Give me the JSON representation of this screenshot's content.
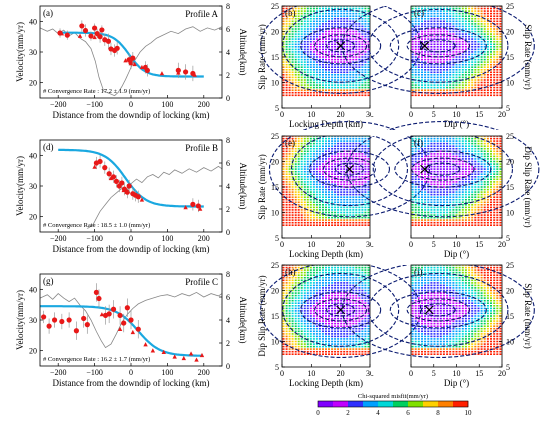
{
  "colorbar": {
    "label": "Chi-squared misfit(mm/yr)",
    "ticks": [
      0,
      2,
      4,
      6,
      8,
      10
    ],
    "colors": [
      "#8000ff",
      "#c000ff",
      "#3030ff",
      "#00a0ff",
      "#00d8d8",
      "#00d060",
      "#80e000",
      "#ffd000",
      "#ff8000",
      "#ff2000"
    ]
  },
  "chart_data": [
    {
      "type": "scatter",
      "panel": "(a)",
      "profile": "Profile A",
      "xlabel": "Distance from the downdip of locking (km)",
      "ylabel": "Velocity(mm/yr)",
      "y2label": "Altitude(km)",
      "xticks": [
        -200,
        -100,
        0,
        100,
        200
      ],
      "yticks": [
        20,
        30,
        40
      ],
      "y2ticks": [
        0,
        2,
        4,
        6,
        8
      ],
      "xlim": [
        -250,
        250
      ],
      "ylim": [
        15,
        45
      ],
      "y2lim": [
        0,
        8
      ],
      "annotation": "# Convergence Rate : 17.2 ± 1.9 (mm/yr)",
      "rate": 17.2,
      "locking_depth": 20,
      "model_curve": {
        "xmin": -200,
        "xmax": 200,
        "low": 22.0,
        "high": 36.3,
        "center": -5,
        "width": 22
      },
      "observations": [
        {
          "x": -195,
          "y": 36.2,
          "e": 1.5
        },
        {
          "x": -175,
          "y": 35.5,
          "e": 1.5
        },
        {
          "x": -135,
          "y": 38.5,
          "e": 1.8
        },
        {
          "x": -125,
          "y": 37.0,
          "e": 2.0
        },
        {
          "x": -110,
          "y": 35.2,
          "e": 1.5
        },
        {
          "x": -100,
          "y": 37.8,
          "e": 1.5
        },
        {
          "x": -93,
          "y": 36.0,
          "e": 1.5
        },
        {
          "x": -85,
          "y": 35.0,
          "e": 2.0
        },
        {
          "x": -80,
          "y": 37.2,
          "e": 1.5
        },
        {
          "x": -72,
          "y": 34.0,
          "e": 2.0
        },
        {
          "x": -62,
          "y": 33.5,
          "e": 2.5
        },
        {
          "x": -55,
          "y": 31.0,
          "e": 2.0
        },
        {
          "x": -45,
          "y": 30.5,
          "e": 2.0
        },
        {
          "x": -38,
          "y": 31.2,
          "e": 2.0
        },
        {
          "x": -5,
          "y": 27.5,
          "e": 2.0
        },
        {
          "x": 0,
          "y": 26.5,
          "e": 2.0
        },
        {
          "x": 5,
          "y": 28.0,
          "e": 2.0
        },
        {
          "x": 40,
          "y": 25.0,
          "e": 2.0
        },
        {
          "x": 45,
          "y": 24.0,
          "e": 2.0
        },
        {
          "x": 130,
          "y": 24.0,
          "e": 2.5
        },
        {
          "x": 150,
          "y": 23.5,
          "e": 2.5
        },
        {
          "x": 170,
          "y": 23.0,
          "e": 2.5
        }
      ],
      "triangles": [
        {
          "x": -190,
          "y": 36.0
        },
        {
          "x": -140,
          "y": 35.2
        },
        {
          "x": -100,
          "y": 34.8
        },
        {
          "x": -15,
          "y": 27.2
        },
        {
          "x": 10,
          "y": 26.0
        },
        {
          "x": 30,
          "y": 25.0
        },
        {
          "x": 85,
          "y": 23.0
        },
        {
          "x": 130,
          "y": 23.2
        },
        {
          "x": 175,
          "y": 22.5
        }
      ]
    },
    {
      "type": "scatter",
      "panel": "(d)",
      "profile": "Profile B",
      "xlabel": "Distance from the downdip of locking (km)",
      "ylabel": "Velocity(mm/yr)",
      "y2label": "Altitude(km)",
      "xticks": [
        -200,
        -100,
        0,
        100,
        200
      ],
      "yticks": [
        20,
        30,
        40
      ],
      "y2ticks": [
        0,
        2,
        4,
        6,
        8
      ],
      "xlim": [
        -250,
        250
      ],
      "ylim": [
        15,
        45
      ],
      "y2lim": [
        0,
        8
      ],
      "annotation": "# Convergence Rate : 18.5 ± 1.0 (mm/yr)",
      "rate": 18.5,
      "locking_depth": 23,
      "model_curve": {
        "xmin": -200,
        "xmax": 200,
        "low": 23.3,
        "high": 41.8,
        "center": -15,
        "width": 28
      },
      "observations": [
        {
          "x": -95,
          "y": 37.5,
          "e": 2.0
        },
        {
          "x": -85,
          "y": 38.0,
          "e": 2.0
        },
        {
          "x": -72,
          "y": 36.0,
          "e": 2.0
        },
        {
          "x": -60,
          "y": 34.0,
          "e": 2.0
        },
        {
          "x": -48,
          "y": 33.0,
          "e": 2.0
        },
        {
          "x": -40,
          "y": 31.5,
          "e": 2.0
        },
        {
          "x": -32,
          "y": 30.0,
          "e": 2.0
        },
        {
          "x": -25,
          "y": 31.0,
          "e": 2.0
        },
        {
          "x": -18,
          "y": 29.0,
          "e": 2.0
        },
        {
          "x": -10,
          "y": 28.0,
          "e": 2.0
        },
        {
          "x": -5,
          "y": 30.0,
          "e": 2.0
        },
        {
          "x": 5,
          "y": 27.5,
          "e": 2.0
        },
        {
          "x": 12,
          "y": 27.0,
          "e": 2.0
        },
        {
          "x": 20,
          "y": 26.5,
          "e": 2.0
        },
        {
          "x": 170,
          "y": 24.0,
          "e": 2.0
        },
        {
          "x": 185,
          "y": 23.5,
          "e": 2.0
        }
      ],
      "triangles": [
        {
          "x": -100,
          "y": 36.2
        },
        {
          "x": -55,
          "y": 32.5
        },
        {
          "x": -20,
          "y": 28.6
        },
        {
          "x": -12,
          "y": 28.0
        },
        {
          "x": 30,
          "y": 25.5
        },
        {
          "x": 150,
          "y": 23.0
        },
        {
          "x": 190,
          "y": 22.5
        }
      ]
    },
    {
      "type": "scatter",
      "panel": "(g)",
      "profile": "Profile C",
      "xlabel": "Distance from the downdip of locking (km)",
      "ylabel": "Velocity(mm/yr)",
      "y2label": "Altitude(km)",
      "xticks": [
        -200,
        -100,
        0,
        100,
        200
      ],
      "yticks": [
        20,
        30,
        40
      ],
      "y2ticks": [
        0,
        2,
        4,
        6,
        8
      ],
      "xlim": [
        -250,
        250
      ],
      "ylim": [
        15,
        45
      ],
      "y2lim": [
        0,
        8
      ],
      "annotation": "# Convergence Rate : 16.2 ± 1.7 (mm/yr)",
      "rate": 16.2,
      "locking_depth": 20,
      "model_curve": {
        "xmin": -250,
        "xmax": 200,
        "low": 18.3,
        "high": 34.5,
        "center": 20,
        "width": 30
      },
      "observations": [
        {
          "x": -240,
          "y": 31.0,
          "e": 2.0
        },
        {
          "x": -225,
          "y": 28.0,
          "e": 2.5
        },
        {
          "x": -210,
          "y": 30.0,
          "e": 2.5
        },
        {
          "x": -190,
          "y": 29.5,
          "e": 2.5
        },
        {
          "x": -170,
          "y": 30.0,
          "e": 2.5
        },
        {
          "x": -150,
          "y": 26.5,
          "e": 3.0
        },
        {
          "x": -130,
          "y": 30.5,
          "e": 3.0
        },
        {
          "x": -120,
          "y": 28.5,
          "e": 3.0
        },
        {
          "x": -95,
          "y": 39.0,
          "e": 3.0
        },
        {
          "x": -88,
          "y": 37.0,
          "e": 3.0
        },
        {
          "x": -70,
          "y": 31.5,
          "e": 3.0
        },
        {
          "x": -60,
          "y": 32.0,
          "e": 3.0
        },
        {
          "x": -48,
          "y": 33.5,
          "e": 3.0
        },
        {
          "x": -30,
          "y": 31.5,
          "e": 3.0
        },
        {
          "x": -20,
          "y": 29.0,
          "e": 3.0
        },
        {
          "x": -10,
          "y": 34.0,
          "e": 3.0
        },
        {
          "x": 0,
          "y": 30.0,
          "e": 3.0
        },
        {
          "x": 20,
          "y": 27.0,
          "e": 3.0
        }
      ],
      "triangles": [
        {
          "x": -80,
          "y": 31.8
        },
        {
          "x": -30,
          "y": 27.0
        },
        {
          "x": 5,
          "y": 26.0
        },
        {
          "x": 40,
          "y": 22.0
        },
        {
          "x": 60,
          "y": 20.0
        },
        {
          "x": 90,
          "y": 19.5
        },
        {
          "x": 120,
          "y": 18.0
        },
        {
          "x": 145,
          "y": 17.5
        },
        {
          "x": 165,
          "y": 19.0
        },
        {
          "x": 180,
          "y": 17.0
        },
        {
          "x": 195,
          "y": 18.5
        }
      ]
    },
    {
      "type": "heatmap",
      "panel": "(b)",
      "xlabel": "Locking Depth (km)",
      "ylabel": "Slip Rate  (mm/yr)",
      "xlim": [
        0,
        30
      ],
      "ylim": [
        5,
        25
      ],
      "xticks": [
        0,
        10,
        20,
        30
      ],
      "yticks": [
        5,
        10,
        15,
        20,
        25
      ],
      "ylabel_side": "left",
      "best_fit": {
        "x": 20,
        "y": 17.2
      },
      "misfit_center": {
        "x": 20,
        "y": 17.2
      }
    },
    {
      "type": "heatmap",
      "panel": "(c)",
      "xlabel": "Dip (°)",
      "ylabel": "Slip Rate  (mm/yr)",
      "xlim": [
        0,
        20
      ],
      "ylim": [
        5,
        25
      ],
      "xticks": [
        0,
        5,
        10,
        15,
        20
      ],
      "yticks": [
        5,
        10,
        15,
        20,
        25
      ],
      "ylabel_side": "right",
      "best_fit": {
        "x": 3,
        "y": 17.2
      },
      "misfit_center": {
        "x": 6,
        "y": 17.2
      }
    },
    {
      "type": "heatmap",
      "panel": "(e)",
      "xlabel": "Locking Depth (km)",
      "ylabel": "Slip Rate  (mm/yr)",
      "xlim": [
        0,
        30
      ],
      "ylim": [
        5,
        25
      ],
      "xticks": [
        0,
        10,
        20,
        30
      ],
      "yticks": [
        5,
        10,
        15,
        20,
        25
      ],
      "ylabel_side": "left",
      "best_fit": {
        "x": 23,
        "y": 18.5
      },
      "misfit_center": {
        "x": 23,
        "y": 18.5
      }
    },
    {
      "type": "heatmap",
      "panel": "(f)",
      "xlabel": "Dip (°)",
      "ylabel": "Dip Slip Rate  (mm/yr)",
      "xlim": [
        0,
        20
      ],
      "ylim": [
        5,
        25
      ],
      "xticks": [
        0,
        5,
        10,
        15,
        20
      ],
      "yticks": [
        5,
        10,
        15,
        20,
        25
      ],
      "ylabel_side": "right",
      "best_fit": {
        "x": 3,
        "y": 18.5
      },
      "misfit_center": {
        "x": 7,
        "y": 18.5
      }
    },
    {
      "type": "heatmap",
      "panel": "(h)",
      "xlabel": "Locking Depth (km)",
      "ylabel": "Dip Slip Rate  (mm/yr)",
      "xlim": [
        0,
        30
      ],
      "ylim": [
        5,
        25
      ],
      "xticks": [
        0,
        10,
        20,
        30
      ],
      "yticks": [
        5,
        10,
        15,
        20,
        25
      ],
      "ylabel_side": "left",
      "best_fit": {
        "x": 20,
        "y": 16.2
      },
      "misfit_center": {
        "x": 20,
        "y": 16.2
      }
    },
    {
      "type": "heatmap",
      "panel": "(i)",
      "xlabel": "Dip (°)",
      "ylabel": "Slip Rate  (mm/yr)",
      "xlim": [
        0,
        20
      ],
      "ylim": [
        5,
        25
      ],
      "xticks": [
        0,
        5,
        10,
        15,
        20
      ],
      "yticks": [
        5,
        10,
        15,
        20,
        25
      ],
      "ylabel_side": "right",
      "best_fit": {
        "x": 4,
        "y": 16.2
      },
      "misfit_center": {
        "x": 6,
        "y": 16.2
      }
    }
  ]
}
